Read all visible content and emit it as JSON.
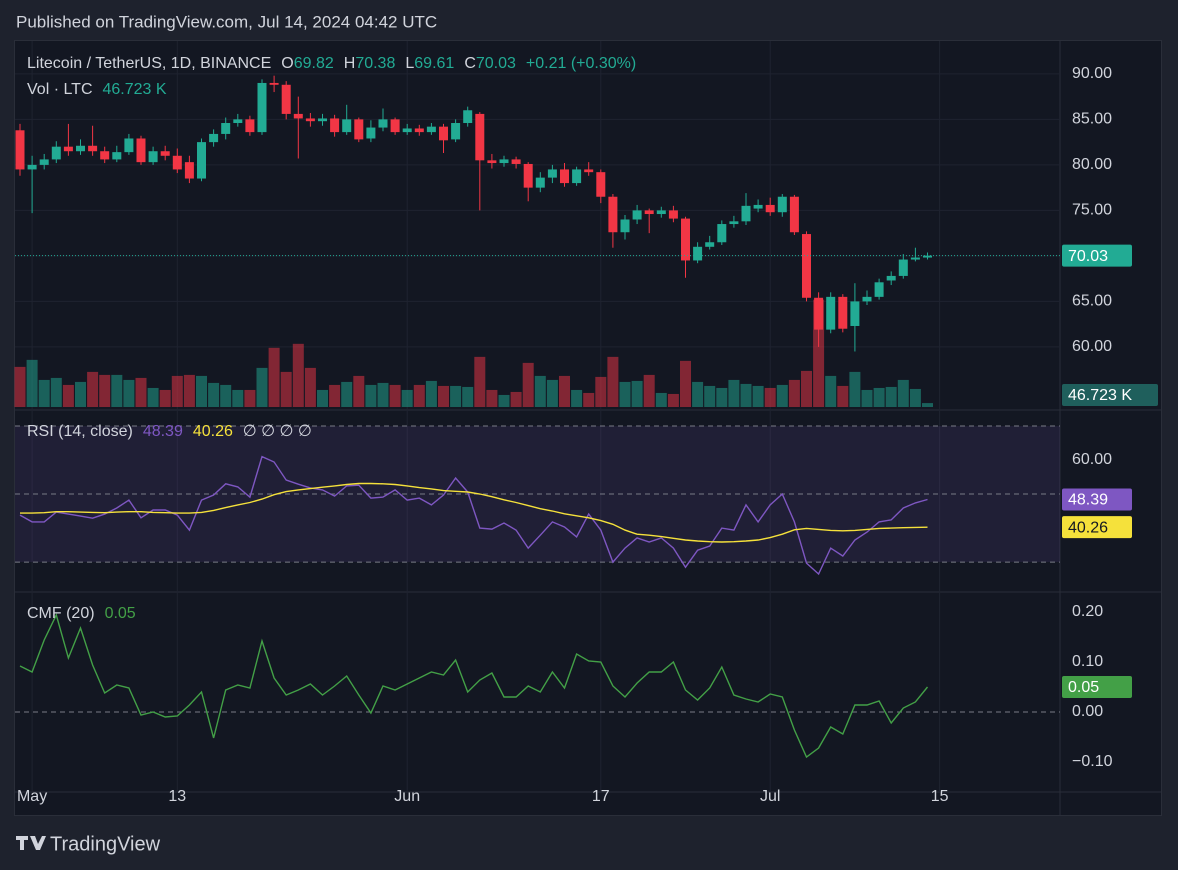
{
  "header": {
    "published": "Published on TradingView.com, Jul 14, 2024 04:42 UTC",
    "footer": "TradingView"
  },
  "chart_data": [
    {
      "type": "candlestick",
      "title": "Litecoin / TetherUS, 1D, BINANCE",
      "ohlc_letters": [
        "O",
        "H",
        "L",
        "C"
      ],
      "change_label": "+0.21 (+0.30%)",
      "up_color": "#22ab94",
      "down_color": "#f23645",
      "x": [
        "2024-04-30",
        "2024-05-01",
        "2024-05-02",
        "2024-05-03",
        "2024-05-04",
        "2024-05-05",
        "2024-05-06",
        "2024-05-07",
        "2024-05-08",
        "2024-05-09",
        "2024-05-10",
        "2024-05-11",
        "2024-05-12",
        "2024-05-13",
        "2024-05-14",
        "2024-05-15",
        "2024-05-16",
        "2024-05-17",
        "2024-05-18",
        "2024-05-19",
        "2024-05-20",
        "2024-05-21",
        "2024-05-22",
        "2024-05-23",
        "2024-05-24",
        "2024-05-25",
        "2024-05-26",
        "2024-05-27",
        "2024-05-28",
        "2024-05-29",
        "2024-05-30",
        "2024-05-31",
        "2024-06-01",
        "2024-06-02",
        "2024-06-03",
        "2024-06-04",
        "2024-06-05",
        "2024-06-06",
        "2024-06-07",
        "2024-06-08",
        "2024-06-09",
        "2024-06-10",
        "2024-06-11",
        "2024-06-12",
        "2024-06-13",
        "2024-06-14",
        "2024-06-15",
        "2024-06-16",
        "2024-06-17",
        "2024-06-18",
        "2024-06-19",
        "2024-06-20",
        "2024-06-21",
        "2024-06-22",
        "2024-06-23",
        "2024-06-24",
        "2024-06-25",
        "2024-06-26",
        "2024-06-27",
        "2024-06-28",
        "2024-06-29",
        "2024-06-30",
        "2024-07-01",
        "2024-07-02",
        "2024-07-03",
        "2024-07-04",
        "2024-07-05",
        "2024-07-06",
        "2024-07-07",
        "2024-07-08",
        "2024-07-09",
        "2024-07-10",
        "2024-07-11",
        "2024-07-12",
        "2024-07-13",
        "2024-07-14"
      ],
      "open": [
        83.8,
        79.5,
        80.0,
        80.6,
        82.0,
        81.5,
        82.1,
        81.5,
        80.6,
        81.4,
        82.9,
        80.3,
        81.5,
        81.0,
        80.3,
        78.5,
        82.5,
        83.4,
        84.6,
        85.0,
        83.6,
        89.0,
        88.8,
        85.6,
        85.1,
        84.8,
        85.1,
        83.6,
        85.0,
        82.9,
        84.1,
        85.0,
        83.6,
        84.0,
        83.6,
        84.2,
        82.8,
        84.6,
        85.6,
        80.5,
        80.2,
        80.6,
        80.1,
        77.5,
        78.6,
        79.5,
        78.0,
        79.5,
        79.2,
        76.5,
        72.6,
        74.0,
        75.0,
        74.6,
        75.0,
        74.1,
        69.5,
        71.0,
        71.5,
        73.5,
        73.8,
        75.2,
        75.6,
        74.8,
        76.5,
        72.4,
        65.4,
        61.9,
        65.5,
        62.3,
        65.0,
        65.5,
        67.3,
        67.8,
        69.6,
        69.82
      ],
      "high": [
        84.5,
        81.0,
        81.2,
        82.6,
        84.5,
        82.8,
        84.3,
        82.0,
        82.1,
        83.4,
        83.2,
        82.0,
        82.1,
        81.8,
        81.0,
        82.9,
        83.9,
        85.2,
        85.6,
        85.4,
        89.4,
        89.8,
        89.2,
        87.5,
        85.7,
        85.6,
        85.5,
        86.6,
        85.2,
        84.9,
        86.2,
        85.2,
        84.5,
        84.4,
        84.6,
        84.5,
        85.0,
        86.4,
        85.8,
        81.2,
        81.0,
        80.9,
        80.3,
        79.2,
        80.0,
        80.2,
        79.8,
        80.3,
        79.5,
        76.8,
        74.5,
        75.6,
        75.2,
        75.4,
        75.5,
        74.3,
        71.5,
        72.2,
        73.9,
        74.4,
        76.9,
        76.2,
        76.4,
        76.8,
        76.7,
        72.7,
        66.0,
        66.0,
        65.8,
        67.0,
        66.2,
        67.5,
        68.3,
        70.2,
        70.9,
        70.38
      ],
      "low": [
        78.8,
        74.7,
        79.5,
        80.2,
        81.0,
        81.1,
        81.0,
        80.2,
        80.3,
        81.1,
        80.0,
        80.0,
        80.5,
        79.1,
        78.0,
        78.2,
        82.0,
        82.8,
        84.2,
        83.2,
        83.3,
        88.0,
        85.0,
        80.7,
        84.2,
        84.3,
        83.1,
        83.3,
        82.5,
        82.5,
        83.7,
        83.3,
        83.3,
        83.2,
        83.3,
        81.3,
        82.5,
        84.2,
        75.0,
        79.6,
        79.8,
        79.6,
        76.0,
        77.0,
        78.0,
        77.6,
        77.7,
        78.8,
        75.8,
        70.9,
        71.8,
        73.5,
        72.5,
        74.2,
        73.7,
        67.6,
        69.2,
        70.7,
        71.2,
        73.1,
        73.4,
        74.8,
        74.4,
        74.3,
        72.3,
        65.0,
        60.0,
        61.5,
        61.6,
        59.5,
        64.6,
        65.2,
        66.8,
        67.5,
        69.4,
        69.61
      ],
      "close": [
        79.5,
        80.0,
        80.6,
        82.0,
        81.5,
        82.1,
        81.5,
        80.6,
        81.4,
        82.9,
        80.3,
        81.5,
        81.0,
        79.5,
        78.5,
        82.5,
        83.4,
        84.6,
        85.0,
        83.6,
        89.0,
        88.8,
        85.6,
        85.1,
        84.8,
        85.1,
        83.6,
        85.0,
        82.8,
        84.1,
        85.0,
        83.6,
        84.0,
        83.6,
        84.2,
        82.7,
        84.6,
        86.0,
        80.5,
        80.2,
        80.6,
        80.1,
        77.5,
        78.6,
        79.5,
        78.0,
        79.5,
        79.2,
        76.5,
        72.6,
        74.0,
        75.0,
        74.6,
        75.0,
        74.1,
        69.5,
        71.0,
        71.5,
        73.5,
        73.8,
        75.5,
        75.6,
        74.8,
        76.5,
        72.6,
        65.4,
        61.9,
        65.5,
        62.0,
        65.0,
        65.5,
        67.1,
        67.8,
        69.6,
        69.82,
        70.03
      ],
      "ylim": [
        53.4,
        93.5
      ],
      "yticks": [
        {
          "value": 90,
          "label": "90.00"
        },
        {
          "value": 85,
          "label": "85.00"
        },
        {
          "value": 80,
          "label": "80.00"
        },
        {
          "value": 75,
          "label": "75.00"
        },
        {
          "value": 70,
          "label": "70.00"
        },
        {
          "value": 65,
          "label": "65.00"
        },
        {
          "value": 60,
          "label": "60.00"
        }
      ],
      "xticks": [
        {
          "value": "2024-05-01",
          "label": "May"
        },
        {
          "value": "2024-05-13",
          "label": "13"
        },
        {
          "value": "2024-06-01",
          "label": "Jun"
        },
        {
          "value": "2024-06-17",
          "label": "17"
        },
        {
          "value": "2024-07-01",
          "label": "Jul"
        },
        {
          "value": "2024-07-15",
          "label": "15"
        }
      ],
      "grid": true,
      "volume": {
        "name": "Vol · LTC",
        "label": "46.723 K",
        "ylim": [
          0,
          1400000
        ],
        "values": [
          480000,
          564000,
          324000,
          348000,
          264000,
          300000,
          420000,
          384000,
          384000,
          324000,
          348000,
          228000,
          204000,
          372000,
          384000,
          372000,
          288000,
          264000,
          204000,
          204000,
          468000,
          708000,
          420000,
          756000,
          468000,
          204000,
          264000,
          300000,
          372000,
          264000,
          288000,
          264000,
          204000,
          264000,
          312000,
          252000,
          252000,
          240000,
          600000,
          204000,
          144000,
          180000,
          528000,
          372000,
          324000,
          372000,
          204000,
          168000,
          360000,
          600000,
          300000,
          312000,
          384000,
          168000,
          156000,
          552000,
          300000,
          252000,
          228000,
          324000,
          276000,
          252000,
          228000,
          264000,
          324000,
          432000,
          1284000,
          372000,
          252000,
          420000,
          204000,
          228000,
          240000,
          324000,
          216000,
          46723
        ]
      }
    },
    {
      "type": "line",
      "title": "RSI (14, close)",
      "ylim": [
        21.8,
        74.1
      ],
      "yticks": [
        {
          "value": 60,
          "label": "60.00"
        }
      ],
      "bands": [
        30,
        50,
        70
      ],
      "band_color": "#7e57c2",
      "extra": "∅ ∅ ∅ ∅",
      "series": [
        {
          "name": "RSI",
          "color": "#7e57c2",
          "values": [
            43.8,
            41.8,
            41.8,
            44.7,
            44.1,
            43.5,
            42.9,
            44.1,
            45.9,
            48.2,
            43.0,
            45.3,
            45.3,
            43.8,
            39.4,
            48.2,
            49.7,
            53.0,
            52.1,
            49.1,
            61.0,
            59.4,
            54.1,
            52.9,
            51.8,
            51.2,
            49.4,
            52.4,
            52.6,
            48.8,
            49.1,
            51.2,
            48.2,
            48.8,
            46.8,
            49.7,
            54.7,
            50.6,
            40.0,
            39.7,
            41.5,
            39.4,
            34.1,
            37.9,
            41.8,
            40.3,
            37.4,
            44.1,
            39.4,
            30.0,
            34.1,
            37.1,
            35.9,
            37.1,
            34.1,
            28.5,
            33.5,
            34.7,
            40.0,
            39.4,
            46.8,
            41.8,
            46.8,
            50.0,
            41.8,
            29.7,
            26.5,
            34.1,
            31.8,
            36.5,
            38.8,
            41.8,
            42.4,
            45.9,
            47.4,
            48.39
          ]
        },
        {
          "name": "RSI-based MA",
          "color": "#f5e13b",
          "values": [
            44.4,
            44.4,
            44.5,
            44.8,
            44.8,
            44.7,
            44.6,
            44.5,
            44.7,
            44.8,
            44.8,
            44.6,
            44.5,
            44.4,
            44.4,
            44.6,
            45.2,
            46,
            46.8,
            47.5,
            48.5,
            49.8,
            50.7,
            51.2,
            51.6,
            52,
            52.4,
            52.8,
            53.1,
            53.1,
            53,
            52.8,
            52.4,
            51.9,
            51.5,
            51,
            50.8,
            50.6,
            50,
            49.2,
            48.3,
            47.5,
            46.6,
            45.7,
            45,
            44.2,
            43.6,
            43,
            42.2,
            41.1,
            39.4,
            38.2,
            37.9,
            37.5,
            37,
            36.5,
            36.2,
            36,
            35.9,
            36,
            36.2,
            36.5,
            37.2,
            38.2,
            39.5,
            39.9,
            39.6,
            39.3,
            39.2,
            39.3,
            39.6,
            39.9,
            40,
            40.1,
            40.2,
            40.26
          ]
        }
      ]
    },
    {
      "type": "line",
      "title": "CMF (20)",
      "ylim": [
        -0.156,
        0.236
      ],
      "yticks": [
        {
          "value": 0.2,
          "label": "0.20"
        },
        {
          "value": 0.1,
          "label": "0.10"
        },
        {
          "value": 0,
          "label": "0.00"
        },
        {
          "value": -0.1,
          "label": "−0.10"
        }
      ],
      "zero_line": 0,
      "series": [
        {
          "name": "CMF",
          "color": "#43a047",
          "values": [
            0.092,
            0.08,
            0.144,
            0.194,
            0.108,
            0.168,
            0.094,
            0.038,
            0.054,
            0.048,
            -0.006,
            0,
            -0.01,
            -0.008,
            0.014,
            0.04,
            -0.052,
            0.044,
            0.054,
            0.048,
            0.142,
            0.068,
            0.034,
            0.044,
            0.056,
            0.034,
            0.052,
            0.072,
            0.034,
            -0.002,
            0.052,
            0.044,
            0.056,
            0.068,
            0.08,
            0.074,
            0.104,
            0.04,
            0.064,
            0.078,
            0.03,
            0.03,
            0.052,
            0.04,
            0.08,
            0.048,
            0.116,
            0.102,
            0.1,
            0.052,
            0.03,
            0.058,
            0.08,
            0.08,
            0.1,
            0.044,
            0.024,
            0.048,
            0.09,
            0.034,
            0.026,
            0.02,
            0.036,
            0.03,
            -0.036,
            -0.09,
            -0.072,
            -0.03,
            -0.044,
            0.014,
            0.014,
            0.022,
            -0.022,
            0.008,
            0.02,
            0.05
          ]
        }
      ]
    }
  ]
}
